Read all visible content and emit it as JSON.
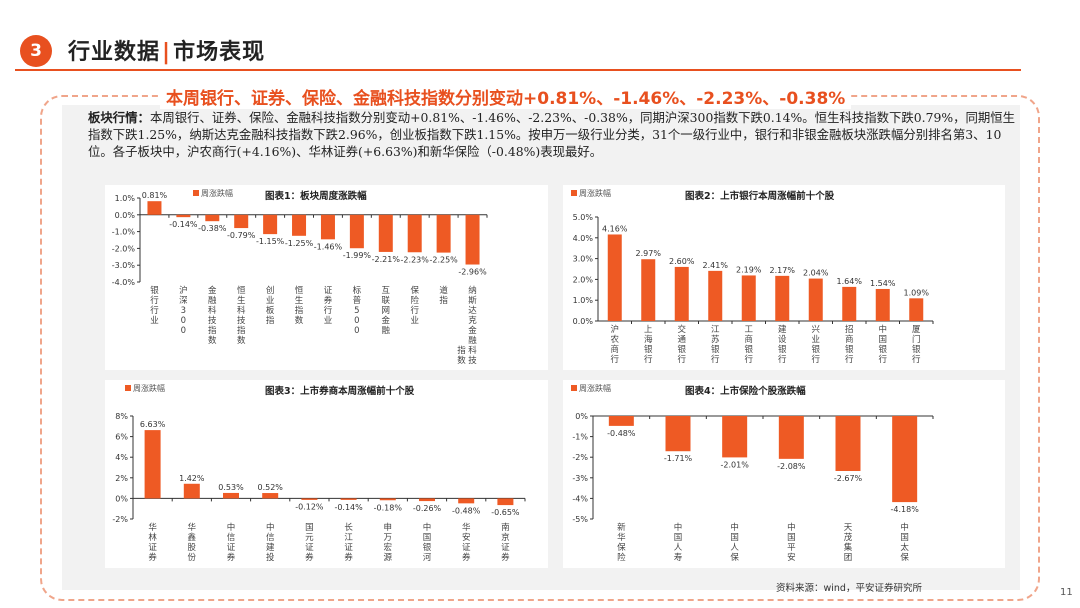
{
  "header": {
    "section_number": "3",
    "title_left": "行业数据",
    "title_sep": "|",
    "title_right": "市场表现"
  },
  "headline": "本周银行、证券、保险、金融科技指数分别变动+0.81%、-1.46%、-2.23%、-0.38%",
  "summary": {
    "label": "板块行情：",
    "text": "本周银行、证券、保险、金融科技指数分别变动+0.81%、-1.46%、-2.23%、-0.38%，同期沪深300指数下跌0.14%。恒生科技指数下跌0.79%，同期恒生指数下跌1.25%，纳斯达克金融科技指数下跌2.96%，创业板指数下跌1.15%。按申万一级行业分类，31个一级行业中，银行和非银金融板块涨跌幅分别排名第3、10位。各子板块中，沪农商行(+4.16%)、华林证券(+6.63%)和新华保险（-0.48%)表现最好。"
  },
  "colors": {
    "accent": "#e8501f",
    "bar": "#ee5a24",
    "panel": "#f2f2f2"
  },
  "chart_data": [
    {
      "type": "bar",
      "title": "图表1：板块周度涨跌幅",
      "legend": "周涨跌幅",
      "legend_position": "top-left",
      "categories": [
        "银行行业",
        "沪深300",
        "金融科技指数",
        "恒生科技指数",
        "创业板指",
        "恒生指数",
        "证券行业",
        "标普500",
        "互联网金融",
        "保险行业",
        "道指",
        "纳斯达克金融科技指数"
      ],
      "values": [
        0.81,
        -0.14,
        -0.38,
        -0.79,
        -1.15,
        -1.25,
        -1.46,
        -1.99,
        -2.21,
        -2.23,
        -2.25,
        -2.96
      ],
      "ylim": [
        -4,
        1
      ],
      "yticks": [
        "1.0%",
        "0.0%",
        "-1.0%",
        "-2.0%",
        "-3.0%",
        "-4.0%"
      ],
      "grid": false
    },
    {
      "type": "bar",
      "title": "图表2：上市银行本周涨幅前十个股",
      "legend": "周涨跌幅",
      "legend_position": "top-left",
      "categories": [
        "沪农商行",
        "上海银行",
        "交通银行",
        "江苏银行",
        "工商银行",
        "建设银行",
        "兴业银行",
        "招商银行",
        "中国银行",
        "厦门银行"
      ],
      "values": [
        4.16,
        2.97,
        2.6,
        2.41,
        2.19,
        2.17,
        2.04,
        1.64,
        1.54,
        1.09
      ],
      "ylim": [
        0,
        5
      ],
      "yticks": [
        "5.0%",
        "4.0%",
        "3.0%",
        "2.0%",
        "1.0%",
        "0.0%"
      ],
      "grid": false
    },
    {
      "type": "bar",
      "title": "图表3：上市券商本周涨幅前十个股",
      "legend": "周涨跌幅",
      "legend_position": "top-left",
      "categories": [
        "华林证券",
        "华鑫股份",
        "中信证券",
        "中信建投",
        "国元证券",
        "长江证券",
        "申万宏源",
        "中国银河",
        "华安证券",
        "南京证券"
      ],
      "values": [
        6.63,
        1.42,
        0.53,
        0.52,
        -0.12,
        -0.14,
        -0.18,
        -0.26,
        -0.48,
        -0.65
      ],
      "ylim": [
        -2,
        8
      ],
      "yticks": [
        "8%",
        "6%",
        "4%",
        "2%",
        "0%",
        "-2%"
      ],
      "grid": false
    },
    {
      "type": "bar",
      "title": "图表4：上市保险个股涨跌幅",
      "legend": "周涨跌幅",
      "legend_position": "top-left",
      "categories": [
        "新华保险",
        "中国人寿",
        "中国人保",
        "中国平安",
        "天茂集团",
        "中国太保"
      ],
      "values": [
        -0.48,
        -1.71,
        -2.01,
        -2.08,
        -2.67,
        -4.18
      ],
      "ylim": [
        -5,
        0
      ],
      "yticks": [
        "0%",
        "-1%",
        "-2%",
        "-3%",
        "-4%",
        "-5%"
      ],
      "grid": false
    }
  ],
  "source": "资料来源：wind，平安证券研究所",
  "page_number": "11"
}
